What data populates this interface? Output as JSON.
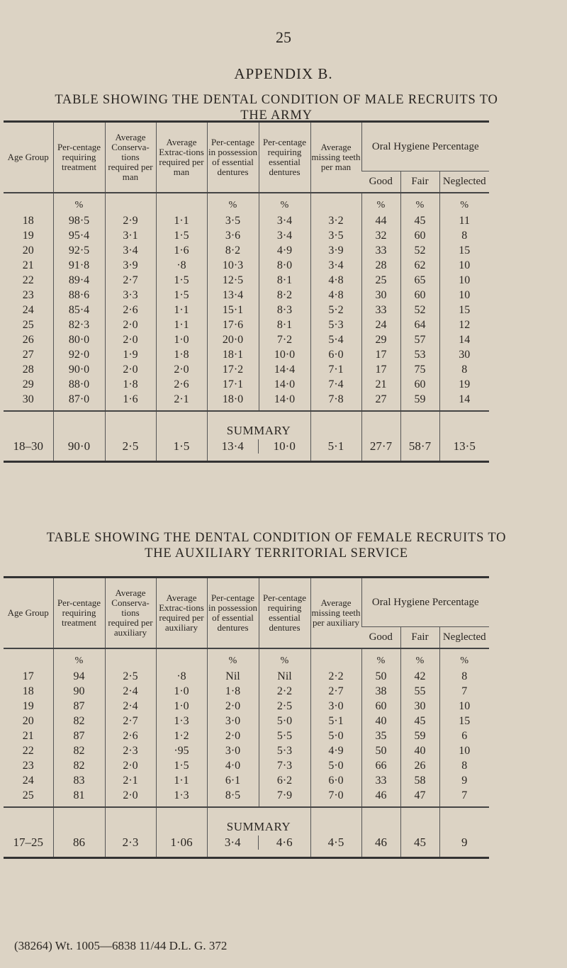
{
  "page_number": "25",
  "appendix": "APPENDIX B.",
  "headers_common": {
    "age": "Age Group",
    "treat": "Per-centage requiring treatment",
    "pct_in": "Per-centage in possession of essential dentures",
    "pct_req": "Per-centage requiring essential dentures",
    "ohp": "Oral Hygiene Percentage",
    "good": "Good",
    "fair": "Fair",
    "neg": "Neglected",
    "pct": "%",
    "summary": "SUMMARY"
  },
  "male": {
    "title": "TABLE SHOWING THE DENTAL CONDITION OF MALE RECRUITS TO THE ARMY",
    "cons": "Average Conserva-tions required per man",
    "extr": "Average Extrac-tions required per man",
    "miss": "Average missing teeth per man",
    "rows": [
      [
        "18",
        "98·5",
        "2·9",
        "1·1",
        "3·5",
        "3·4",
        "3·2",
        "44",
        "45",
        "11"
      ],
      [
        "19",
        "95·4",
        "3·1",
        "1·5",
        "3·6",
        "3·4",
        "3·5",
        "32",
        "60",
        "8"
      ],
      [
        "20",
        "92·5",
        "3·4",
        "1·6",
        "8·2",
        "4·9",
        "3·9",
        "33",
        "52",
        "15"
      ],
      [
        "21",
        "91·8",
        "3·9",
        "·8",
        "10·3",
        "8·0",
        "3·4",
        "28",
        "62",
        "10"
      ],
      [
        "22",
        "89·4",
        "2·7",
        "1·5",
        "12·5",
        "8·1",
        "4·8",
        "25",
        "65",
        "10"
      ],
      [
        "23",
        "88·6",
        "3·3",
        "1·5",
        "13·4",
        "8·2",
        "4·8",
        "30",
        "60",
        "10"
      ],
      [
        "24",
        "85·4",
        "2·6",
        "1·1",
        "15·1",
        "8·3",
        "5·2",
        "33",
        "52",
        "15"
      ],
      [
        "25",
        "82·3",
        "2·0",
        "1·1",
        "17·6",
        "8·1",
        "5·3",
        "24",
        "64",
        "12"
      ],
      [
        "26",
        "80·0",
        "2·0",
        "1·0",
        "20·0",
        "7·2",
        "5·4",
        "29",
        "57",
        "14"
      ],
      [
        "27",
        "92·0",
        "1·9",
        "1·8",
        "18·1",
        "10·0",
        "6·0",
        "17",
        "53",
        "30"
      ],
      [
        "28",
        "90·0",
        "2·0",
        "2·0",
        "17·2",
        "14·4",
        "7·1",
        "17",
        "75",
        "8"
      ],
      [
        "29",
        "88·0",
        "1·8",
        "2·6",
        "17·1",
        "14·0",
        "7·4",
        "21",
        "60",
        "19"
      ],
      [
        "30",
        "87·0",
        "1·6",
        "2·1",
        "18·0",
        "14·0",
        "7·8",
        "27",
        "59",
        "14"
      ]
    ],
    "summary": [
      "18–30",
      "90·0",
      "2·5",
      "1·5",
      "13·4",
      "10·0",
      "5·1",
      "27·7",
      "58·7",
      "13·5"
    ]
  },
  "female": {
    "title": "TABLE SHOWING THE DENTAL CONDITION OF FEMALE RECRUITS TO THE AUXILIARY TERRITORIAL SERVICE",
    "cons": "Average Conserva-tions required per auxiliary",
    "extr": "Average Extrac-tions required per auxiliary",
    "miss": "Average missing teeth per auxiliary",
    "rows": [
      [
        "17",
        "94",
        "2·5",
        "·8",
        "Nil",
        "Nil",
        "2·2",
        "50",
        "42",
        "8"
      ],
      [
        "18",
        "90",
        "2·4",
        "1·0",
        "1·8",
        "2·2",
        "2·7",
        "38",
        "55",
        "7"
      ],
      [
        "19",
        "87",
        "2·4",
        "1·0",
        "2·0",
        "2·5",
        "3·0",
        "60",
        "30",
        "10"
      ],
      [
        "20",
        "82",
        "2·7",
        "1·3",
        "3·0",
        "5·0",
        "5·1",
        "40",
        "45",
        "15"
      ],
      [
        "21",
        "87",
        "2·6",
        "1·2",
        "2·0",
        "5·5",
        "5·0",
        "35",
        "59",
        "6"
      ],
      [
        "22",
        "82",
        "2·3",
        "·95",
        "3·0",
        "5·3",
        "4·9",
        "50",
        "40",
        "10"
      ],
      [
        "23",
        "82",
        "2·0",
        "1·5",
        "4·0",
        "7·3",
        "5·0",
        "66",
        "26",
        "8"
      ],
      [
        "24",
        "83",
        "2·1",
        "1·1",
        "6·1",
        "6·2",
        "6·0",
        "33",
        "58",
        "9"
      ],
      [
        "25",
        "81",
        "2·0",
        "1·3",
        "8·5",
        "7·9",
        "7·0",
        "46",
        "47",
        "7"
      ]
    ],
    "summary": [
      "17–25",
      "86",
      "2·3",
      "1·06",
      "3·4",
      "4·6",
      "4·5",
      "46",
      "45",
      "9"
    ]
  },
  "footer": "(38264) Wt. 1005—6838 11/44 D.L. G. 372"
}
